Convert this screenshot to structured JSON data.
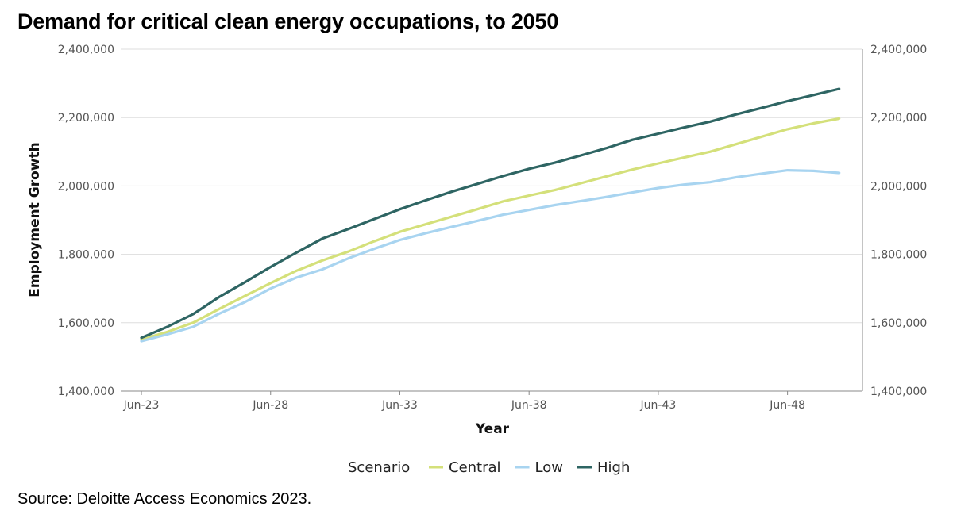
{
  "chart_data": {
    "type": "line",
    "title": "Demand for critical clean energy occupations, to 2050",
    "xlabel": "Year",
    "ylabel": "Employment Growth",
    "x": [
      2023,
      2024,
      2025,
      2026,
      2027,
      2028,
      2029,
      2030,
      2031,
      2032,
      2033,
      2034,
      2035,
      2036,
      2037,
      2038,
      2039,
      2040,
      2041,
      2042,
      2043,
      2044,
      2045,
      2046,
      2047,
      2048,
      2049,
      2050
    ],
    "x_ticks": [
      {
        "value": 2023,
        "label": "Jun-23"
      },
      {
        "value": 2028,
        "label": "Jun-28"
      },
      {
        "value": 2033,
        "label": "Jun-33"
      },
      {
        "value": 2038,
        "label": "Jun-38"
      },
      {
        "value": 2043,
        "label": "Jun-43"
      },
      {
        "value": 2048,
        "label": "Jun-48"
      }
    ],
    "xlim": [
      2022.2,
      2050.9
    ],
    "ylim": [
      1400000,
      2400000
    ],
    "y_ticks": [
      1400000,
      1600000,
      1800000,
      2000000,
      2200000,
      2400000
    ],
    "y_tick_labels": [
      "1,400,000",
      "1,600,000",
      "1,800,000",
      "2,000,000",
      "2,200,000",
      "2,400,000"
    ],
    "grid": true,
    "secondary_y_axis": true,
    "legend": {
      "title": "Scenario",
      "position": "bottom"
    },
    "series": [
      {
        "name": "Central",
        "color": "#d4e07a",
        "values": [
          1551000,
          1573000,
          1600000,
          1640000,
          1678000,
          1716000,
          1752000,
          1782000,
          1808000,
          1838000,
          1866000,
          1888000,
          1910000,
          1932000,
          1955000,
          1972000,
          1988000,
          2008000,
          2028000,
          2048000,
          2066000,
          2083000,
          2100000,
          2122000,
          2144000,
          2166000,
          2183000,
          2197000
        ]
      },
      {
        "name": "Low",
        "color": "#a8d4f0",
        "values": [
          1546000,
          1566000,
          1588000,
          1626000,
          1660000,
          1700000,
          1732000,
          1756000,
          1788000,
          1816000,
          1842000,
          1862000,
          1880000,
          1898000,
          1916000,
          1930000,
          1944000,
          1956000,
          1968000,
          1981000,
          1994000,
          2004000,
          2011000,
          2025000,
          2036000,
          2046000,
          2044000,
          2038000
        ]
      },
      {
        "name": "High",
        "color": "#2e6563",
        "values": [
          1556000,
          1588000,
          1625000,
          1675000,
          1718000,
          1763000,
          1805000,
          1846000,
          1874000,
          1903000,
          1932000,
          1958000,
          1983000,
          2006000,
          2029000,
          2050000,
          2068000,
          2089000,
          2111000,
          2135000,
          2153000,
          2171000,
          2188000,
          2209000,
          2228000,
          2248000,
          2266000,
          2284000
        ]
      }
    ]
  },
  "source": "Source: Deloitte Access Economics 2023."
}
